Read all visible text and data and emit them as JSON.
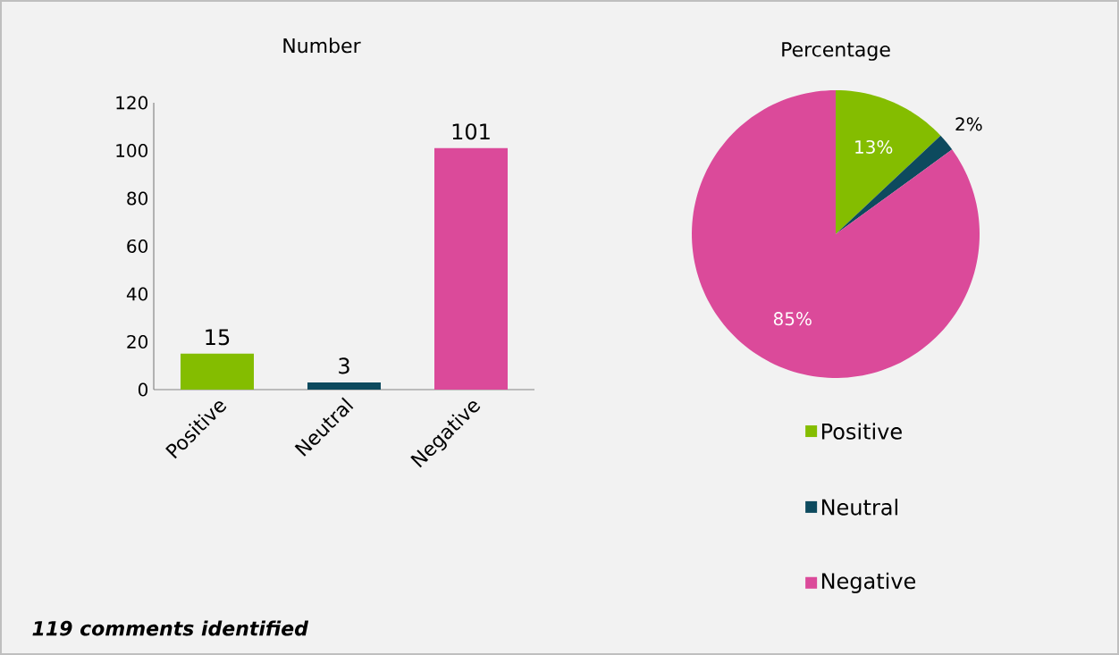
{
  "chart_data": [
    {
      "type": "bar",
      "title": "Number",
      "categories": [
        "Positive",
        "Neutral",
        "Negative"
      ],
      "values": [
        15,
        3,
        101
      ],
      "colors": [
        "#84bd00",
        "#0d4a5e",
        "#db4a9a"
      ],
      "ylim": [
        0,
        120
      ],
      "yticks": [
        0,
        20,
        40,
        60,
        80,
        100,
        120
      ],
      "data_labels": true,
      "annotations": [
        "119 comments identified"
      ]
    },
    {
      "type": "pie",
      "title": "Percentage",
      "categories": [
        "Positive",
        "Neutral",
        "Negative"
      ],
      "values": [
        13,
        2,
        85
      ],
      "colors": [
        "#84bd00",
        "#0d4a5e",
        "#db4a9a"
      ],
      "value_labels": [
        "13%",
        "2%",
        "85%"
      ],
      "legend": "bottom"
    }
  ]
}
